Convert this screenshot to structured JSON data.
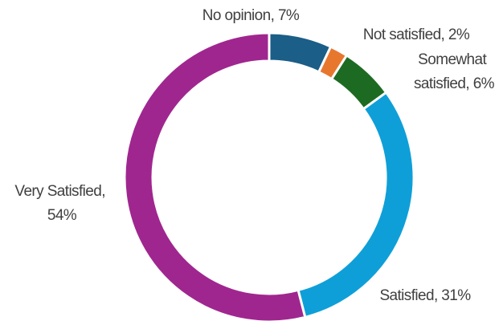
{
  "chart_data": {
    "type": "pie",
    "style": "donut",
    "categories": [
      "No opinion",
      "Not satisfied",
      "Somewhat satisfied",
      "Satisfied",
      "Very Satisfied"
    ],
    "values": [
      7,
      2,
      6,
      31,
      54
    ],
    "units": "%",
    "colors": [
      "#1B5E87",
      "#E8772E",
      "#1D6B22",
      "#0F9FD8",
      "#A0268F"
    ],
    "labels": [
      {
        "id": "no-opinion",
        "lines": [
          "No opinion, 7%"
        ]
      },
      {
        "id": "not-satisfied",
        "lines": [
          "Not satisfied, 2%"
        ]
      },
      {
        "id": "somewhat-satisfied",
        "lines": [
          "Somewhat",
          "satisfied, 6%"
        ]
      },
      {
        "id": "satisfied",
        "lines": [
          "Satisfied, 31%"
        ]
      },
      {
        "id": "very-satisfied",
        "lines": [
          "Very Satisfied,",
          "54%"
        ]
      }
    ],
    "title": "",
    "legend": "none"
  }
}
